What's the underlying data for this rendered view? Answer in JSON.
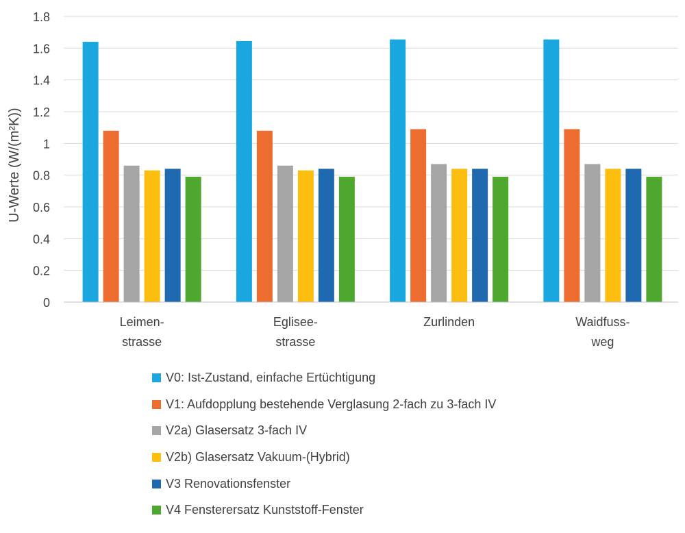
{
  "chart_data": {
    "type": "bar",
    "title": "",
    "xlabel": "",
    "ylabel": "U-Werte (W/(m²K))",
    "ylim": [
      0,
      1.8
    ],
    "yticks": [
      "0",
      "0.2",
      "0.4",
      "0.6",
      "0.8",
      "1",
      "1.2",
      "1.4",
      "1.6",
      "1.8"
    ],
    "grid": true,
    "legend_position": "bottom",
    "categories": [
      [
        "Leimen-",
        "strasse"
      ],
      [
        "Eglisee-",
        "strasse"
      ],
      [
        "Zurlinden"
      ],
      [
        "Waidfuss-",
        "weg"
      ]
    ],
    "series": [
      {
        "name": "V0: Ist-Zustand, einfache Ertüchtigung",
        "color": "#1aa7e0",
        "values": [
          1.64,
          1.645,
          1.655,
          1.655
        ]
      },
      {
        "name": "V1: Aufdopplung bestehende Verglasung 2-fach zu 3-fach IV",
        "color": "#ec6d2f",
        "values": [
          1.08,
          1.08,
          1.09,
          1.09
        ]
      },
      {
        "name": "V2a) Glasersatz 3-fach IV",
        "color": "#a5a5a5",
        "values": [
          0.86,
          0.86,
          0.87,
          0.87
        ]
      },
      {
        "name": "V2b) Glasersatz Vakuum-(Hybrid)",
        "color": "#fdbe10",
        "values": [
          0.83,
          0.83,
          0.84,
          0.84
        ]
      },
      {
        "name": "V3 Renovationsfenster",
        "color": "#1f69b0",
        "values": [
          0.84,
          0.84,
          0.84,
          0.84
        ]
      },
      {
        "name": "V4 Fensterersatz Kunststoff-Fenster",
        "color": "#4ea72e",
        "values": [
          0.79,
          0.79,
          0.79,
          0.79
        ]
      }
    ]
  }
}
